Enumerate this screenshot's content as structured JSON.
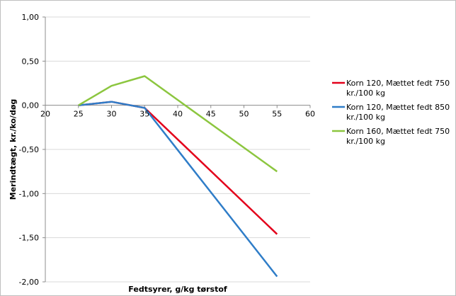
{
  "chart_data": {
    "type": "line",
    "title": "",
    "xlabel": "Fedtsyrer, g/kg tørstof",
    "ylabel": "Merindtægt, kr./ko/døg",
    "xlim": [
      20,
      60
    ],
    "ylim": [
      -2,
      1
    ],
    "x_ticks": [
      20,
      25,
      30,
      35,
      40,
      45,
      50,
      55,
      60
    ],
    "y_ticks": [
      1,
      0.5,
      0,
      -0.5,
      -1,
      -1.5,
      -2
    ],
    "x_tick_labels": [
      "20",
      "25",
      "30",
      "35",
      "40",
      "45",
      "50",
      "55",
      "60"
    ],
    "y_tick_labels": [
      "1,00",
      "0,50",
      "0,00",
      "-0,50",
      "-1,00",
      "-1,50",
      "-2,00"
    ],
    "grid": "y-major",
    "legend_position": "right",
    "series": [
      {
        "name": "Korn 120, Mættet fedt 750 kr./100 kg",
        "legend_lines": [
          "Korn 120, Mættet fedt 750",
          "kr./100 kg"
        ],
        "color": "#e3001b",
        "points": [
          [
            25,
            0.0
          ],
          [
            30,
            0.04
          ],
          [
            35,
            -0.03
          ],
          [
            55,
            -1.46
          ]
        ]
      },
      {
        "name": "Korn 120, Mættet fedt 850 kr./100 kg",
        "legend_lines": [
          "Korn 120, Mættet fedt 850",
          "kr./100 kg"
        ],
        "color": "#2f7dc8",
        "points": [
          [
            25,
            0.0
          ],
          [
            30,
            0.04
          ],
          [
            35,
            -0.03
          ],
          [
            55,
            -1.94
          ]
        ]
      },
      {
        "name": "Korn 160, Mættet fedt 750 kr./100 kg",
        "legend_lines": [
          "Korn 160, Mættet fedt 750",
          "kr./100 kg"
        ],
        "color": "#8cc63f",
        "points": [
          [
            25,
            0.0
          ],
          [
            30,
            0.22
          ],
          [
            35,
            0.33
          ],
          [
            55,
            -0.75
          ]
        ]
      }
    ]
  }
}
